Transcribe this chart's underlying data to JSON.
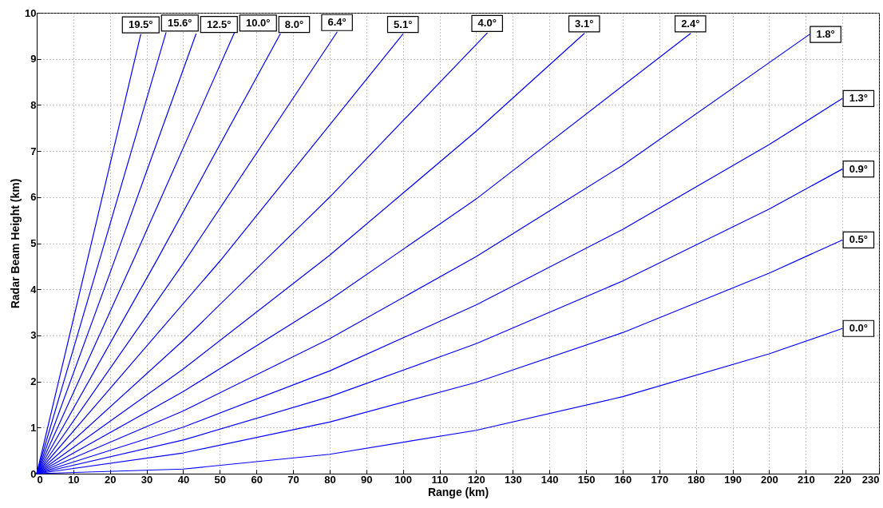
{
  "chart_data": {
    "type": "line",
    "xlabel": "Range (km)",
    "ylabel": "Radar Beam Height (km)",
    "xlim": [
      0,
      230
    ],
    "ylim": [
      0,
      10
    ],
    "xticks": [
      0,
      10,
      20,
      30,
      40,
      50,
      60,
      70,
      80,
      90,
      100,
      110,
      120,
      130,
      140,
      150,
      160,
      170,
      180,
      190,
      200,
      210,
      220,
      230
    ],
    "yticks": [
      0,
      1,
      2,
      3,
      4,
      5,
      6,
      7,
      8,
      9,
      10
    ],
    "grid": true,
    "marker": "none",
    "line_style": "solid",
    "series": [
      {
        "color": "#0000ff",
        "x": [
          0,
          40,
          80,
          120,
          160,
          200,
          220
        ],
        "values": [
          0,
          0.1,
          0.42,
          0.94,
          1.67,
          2.6,
          3.15
        ]
      },
      {
        "color": "#0000ff",
        "x": [
          0,
          40,
          80,
          120,
          160,
          200,
          220
        ],
        "values": [
          0,
          0.45,
          1.12,
          1.98,
          3.06,
          4.35,
          5.07
        ]
      },
      {
        "color": "#0000ff",
        "x": [
          0,
          40,
          80,
          120,
          160,
          200,
          220
        ],
        "values": [
          0,
          0.73,
          1.67,
          2.82,
          4.18,
          5.74,
          6.61
        ]
      },
      {
        "color": "#0000ff",
        "x": [
          0,
          40,
          80,
          120,
          160,
          200,
          220
        ],
        "values": [
          0,
          1.01,
          2.23,
          3.66,
          5.3,
          7.14,
          8.14
        ]
      },
      {
        "color": "#0000ff",
        "x": [
          0,
          40,
          80,
          120,
          160,
          211
        ],
        "values": [
          0,
          1.36,
          2.93,
          4.71,
          6.69,
          9.53
        ]
      },
      {
        "color": "#0000ff",
        "x": [
          0,
          40,
          80,
          120,
          178.5
        ],
        "values": [
          0,
          1.78,
          3.77,
          5.96,
          9.55
        ]
      },
      {
        "color": "#0000ff",
        "x": [
          0,
          40,
          80,
          120,
          149.5
        ],
        "values": [
          0,
          2.27,
          4.74,
          7.43,
          9.55
        ]
      },
      {
        "color": "#0000ff",
        "x": [
          0,
          40,
          80,
          123
        ],
        "values": [
          0,
          2.89,
          6,
          9.56
        ]
      },
      {
        "color": "#0000ff",
        "x": [
          0,
          50,
          100
        ],
        "values": [
          0,
          4.61,
          9.54
        ]
      },
      {
        "color": "#0000ff",
        "x": [
          0,
          40,
          82
        ],
        "values": [
          0,
          4.56,
          9.58
        ]
      },
      {
        "color": "#0000ff",
        "x": [
          0,
          33,
          66.5
        ],
        "values": [
          0,
          4.66,
          9.54
        ]
      },
      {
        "color": "#0000ff",
        "x": [
          0,
          27,
          54
        ],
        "values": [
          0,
          4.74,
          9.57
        ]
      },
      {
        "color": "#0000ff",
        "x": [
          0,
          22,
          43.5
        ],
        "values": [
          0,
          4.79,
          9.54
        ]
      },
      {
        "color": "#0000ff",
        "x": [
          0,
          17.5,
          35.3
        ],
        "values": [
          0,
          4.73,
          9.57
        ]
      },
      {
        "color": "#0000ff",
        "x": [
          0,
          14,
          28.4
        ],
        "values": [
          0,
          4.69,
          9.53
        ]
      }
    ],
    "annotations": [
      {
        "text": "0.0°",
        "x": 220,
        "y": 3.15
      },
      {
        "text": "0.5°",
        "x": 220,
        "y": 5.07
      },
      {
        "text": "0.9°",
        "x": 220,
        "y": 6.61
      },
      {
        "text": "1.3°",
        "x": 220,
        "y": 8.14
      },
      {
        "text": "1.8°",
        "x": 211,
        "y": 9.53
      },
      {
        "text": "2.4°",
        "x": 178.5,
        "y": 9.55
      },
      {
        "text": "3.1°",
        "x": 149.5,
        "y": 9.55
      },
      {
        "text": "4.0°",
        "x": 123,
        "y": 9.56
      },
      {
        "text": "5.1°",
        "x": 100,
        "y": 9.54
      },
      {
        "text": "6.4°",
        "x": 82,
        "y": 9.58
      },
      {
        "text": "8.0°",
        "x": 66.5,
        "y": 9.54
      },
      {
        "text": "10.0°",
        "x": 54,
        "y": 9.57
      },
      {
        "text": "12.5°",
        "x": 43.5,
        "y": 9.54
      },
      {
        "text": "15.6°",
        "x": 35.3,
        "y": 9.57
      },
      {
        "text": "19.5°",
        "x": 28.4,
        "y": 9.53
      }
    ]
  }
}
